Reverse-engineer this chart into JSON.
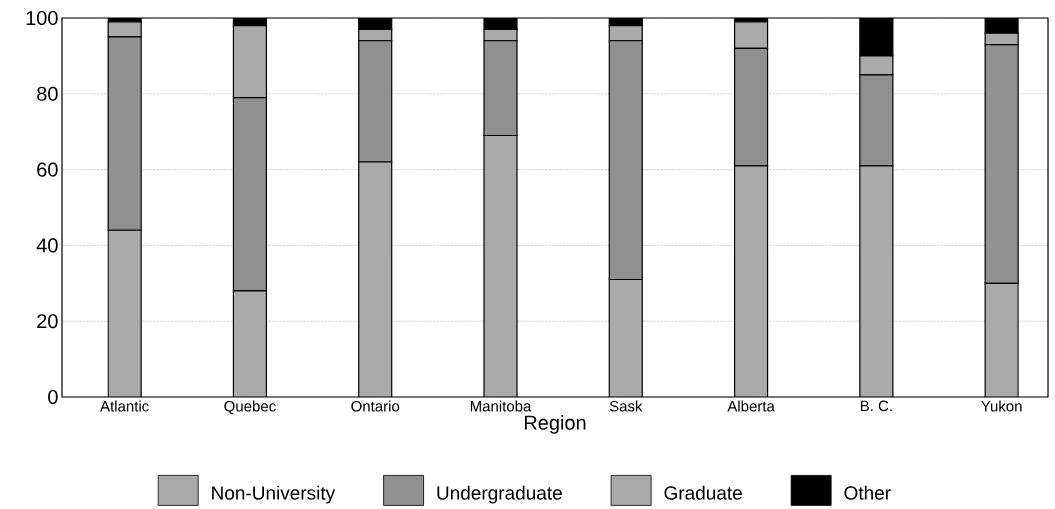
{
  "chart_data": {
    "type": "bar",
    "stacked": true,
    "xlabel": "Region",
    "categories": [
      "Atlantic",
      "Quebec",
      "Ontario",
      "Manitoba",
      "Sask",
      "Alberta",
      "B. C.",
      "Yukon"
    ],
    "series": [
      {
        "name": "Non-University",
        "color": "#aaaaaa",
        "values": [
          44,
          28,
          62,
          69,
          31,
          61,
          61,
          30
        ]
      },
      {
        "name": "Undergraduate",
        "color": "#909090",
        "values": [
          51,
          51,
          32,
          25,
          63,
          31,
          24,
          63
        ]
      },
      {
        "name": "Graduate",
        "color": "#aaaaaa",
        "values": [
          4,
          19,
          3,
          3,
          4,
          7,
          5,
          3
        ]
      },
      {
        "name": "Other",
        "color": "#000000",
        "values": [
          1,
          2,
          3,
          3,
          2,
          1,
          10,
          4
        ]
      }
    ],
    "ylim": [
      0,
      100
    ],
    "yticks": [
      0,
      20,
      40,
      60,
      80,
      100
    ],
    "grid": "y",
    "legend": "bottom"
  }
}
